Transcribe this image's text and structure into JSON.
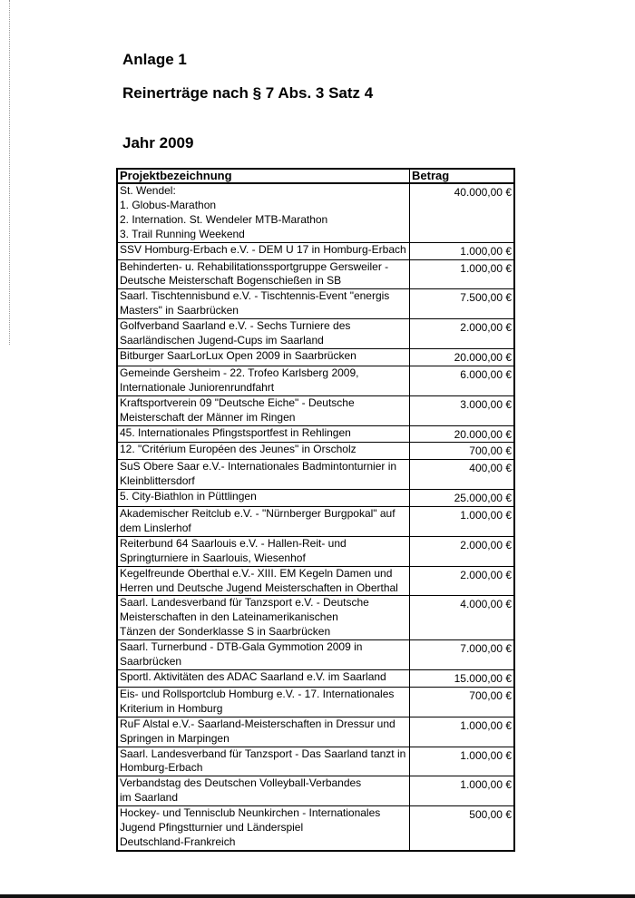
{
  "header": {
    "annex": "Anlage 1",
    "title": "Reinerträge nach § 7 Abs. 3 Satz 4",
    "year": "Jahr 2009"
  },
  "table": {
    "columns": [
      "Projektbezeichnung",
      "Betrag"
    ],
    "rows": [
      {
        "project": [
          "St. Wendel:",
          "1. Globus-Marathon",
          "2. Internation. St. Wendeler MTB-Marathon",
          "3. Trail Running Weekend"
        ],
        "amount": "40.000,00 €"
      },
      {
        "project": [
          "SSV Homburg-Erbach e.V. - DEM U 17 in Homburg-Erbach"
        ],
        "amount": "1.000,00 €"
      },
      {
        "project": [
          "Behinderten- u. Rehabilitationssportgruppe Gersweiler -",
          "Deutsche Meisterschaft Bogenschießen in SB"
        ],
        "amount": "1.000,00 €"
      },
      {
        "project": [
          "Saarl. Tischtennisbund e.V. - Tischtennis-Event \"energis",
          "Masters\" in Saarbrücken"
        ],
        "amount": "7.500,00 €"
      },
      {
        "project": [
          "Golfverband Saarland e.V. - Sechs Turniere des",
          "Saarländischen Jugend-Cups im Saarland"
        ],
        "amount": "2.000,00 €"
      },
      {
        "project": [
          "Bitburger SaarLorLux Open 2009 in Saarbrücken"
        ],
        "amount": "20.000,00 €"
      },
      {
        "project": [
          "Gemeinde Gersheim - 22. Trofeo Karlsberg 2009,",
          "Internationale Juniorenrundfahrt"
        ],
        "amount": "6.000,00 €"
      },
      {
        "project": [
          "Kraftsportverein 09 \"Deutsche Eiche\" - Deutsche",
          "Meisterschaft der Männer im Ringen"
        ],
        "amount": "3.000,00 €"
      },
      {
        "project": [
          "45. Internationales Pfingstsportfest in Rehlingen"
        ],
        "amount": "20.000,00 €"
      },
      {
        "project": [
          "12. \"Critérium Européen des Jeunes\" in Orscholz"
        ],
        "amount": "700,00 €"
      },
      {
        "project": [
          "SuS Obere Saar e.V.- Internationales Badmintonturnier in",
          "Kleinblittersdorf"
        ],
        "amount": "400,00 €"
      },
      {
        "project": [
          "5. City-Biathlon in Püttlingen"
        ],
        "amount": "25.000,00 €"
      },
      {
        "project": [
          "Akademischer Reitclub e.V. - \"Nürnberger Burgpokal\" auf",
          "dem Linslerhof"
        ],
        "amount": "1.000,00 €"
      },
      {
        "project": [
          "Reiterbund 64 Saarlouis e.V. - Hallen-Reit- und",
          "Springturniere in Saarlouis, Wiesenhof"
        ],
        "amount": "2.000,00 €"
      },
      {
        "project": [
          "Kegelfreunde Oberthal e.V.- XIII. EM Kegeln Damen und",
          "Herren und Deutsche Jugend Meisterschaften in Oberthal"
        ],
        "amount": "2.000,00 €"
      },
      {
        "project": [
          "Saarl. Landesverband für Tanzsport e.V. - Deutsche",
          "Meisterschaften in den Lateinamerikanischen",
          "Tänzen der Sonderklasse S in Saarbrücken"
        ],
        "amount": "4.000,00 €"
      },
      {
        "project": [
          "Saarl. Turnerbund - DTB-Gala Gymmotion 2009 in",
          "Saarbrücken"
        ],
        "amount": "7.000,00 €"
      },
      {
        "project": [
          "Sportl. Aktivitäten des ADAC Saarland e.V. im Saarland"
        ],
        "amount": "15.000,00 €"
      },
      {
        "project": [
          "Eis- und Rollsportclub Homburg e.V. - 17. Internationales",
          "Kriterium in Homburg"
        ],
        "amount": "700,00 €"
      },
      {
        "project": [
          "RuF Alstal e.V.- Saarland-Meisterschaften in Dressur und",
          "Springen in Marpingen"
        ],
        "amount": "1.000,00 €"
      },
      {
        "project": [
          "Saarl. Landesverband für Tanzsport - Das Saarland tanzt in",
          "Homburg-Erbach"
        ],
        "amount": "1.000,00 €"
      },
      {
        "project": [
          "Verbandstag des Deutschen Volleyball-Verbandes",
          "im Saarland"
        ],
        "amount": "1.000,00 €"
      },
      {
        "project": [
          "Hockey- und Tennisclub Neunkirchen - Internationales",
          "Jugend Pfingstturnier und Länderspiel",
          "Deutschland-Frankreich"
        ],
        "amount": "500,00 €"
      }
    ]
  }
}
